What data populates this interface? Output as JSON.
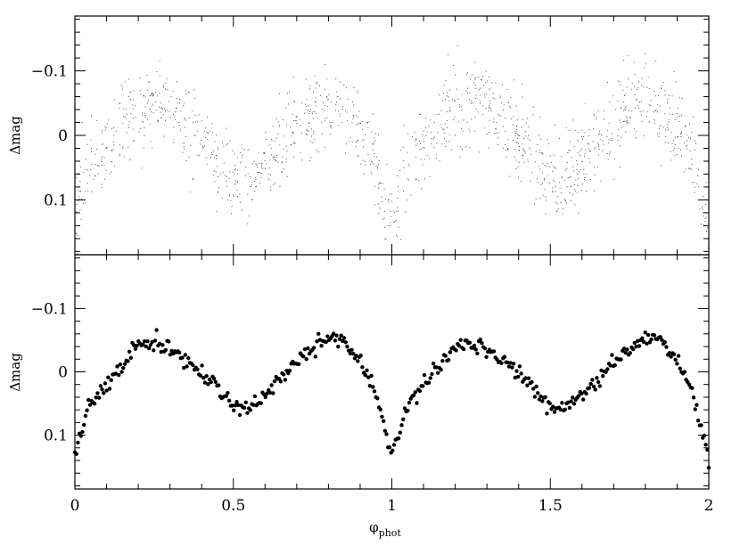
{
  "chart_data": [
    {
      "type": "scatter",
      "panel": "top",
      "ylabel": "Δmag",
      "xlim": [
        0,
        2
      ],
      "ylim": [
        -0.185,
        0.185
      ],
      "y_inverted": true,
      "x_ticks": [
        0,
        0.5,
        1,
        1.5,
        2
      ],
      "y_ticks": [
        -0.1,
        0,
        0.1
      ],
      "y_tick_labels": [
        "−0.1",
        "0",
        "0.1"
      ],
      "point_color": "#333333",
      "series": [
        {
          "style": "dense-dots",
          "x": [
            0.0,
            0.05,
            0.1,
            0.15,
            0.2,
            0.25,
            0.3,
            0.35,
            0.4,
            0.45,
            0.5,
            0.55,
            0.6,
            0.65,
            0.7,
            0.75,
            0.8,
            0.85,
            0.9,
            0.95,
            1.0
          ],
          "y": [
            0.13,
            0.045,
            0.02,
            -0.02,
            -0.045,
            -0.055,
            -0.045,
            -0.02,
            0.005,
            0.035,
            0.06,
            0.065,
            0.04,
            0.01,
            -0.02,
            -0.04,
            -0.055,
            -0.045,
            -0.01,
            0.04,
            0.16
          ]
        }
      ]
    },
    {
      "type": "scatter",
      "panel": "bottom",
      "ylabel": "Δmag",
      "xlabel": "φ",
      "xlabel_sub": "phot",
      "xlim": [
        0,
        2
      ],
      "ylim": [
        -0.185,
        0.185
      ],
      "y_inverted": true,
      "x_ticks": [
        0,
        0.5,
        1,
        1.5,
        2
      ],
      "x_tick_labels": [
        "0",
        "0.5",
        "1",
        "1.5",
        "2"
      ],
      "y_ticks": [
        -0.1,
        0,
        0.1
      ],
      "y_tick_labels": [
        "−0.1",
        "0",
        "0.1"
      ],
      "point_color": "#000000",
      "series": [
        {
          "style": "binned-dots",
          "x": [
            0.0,
            0.05,
            0.1,
            0.15,
            0.2,
            0.25,
            0.3,
            0.35,
            0.4,
            0.45,
            0.5,
            0.55,
            0.6,
            0.65,
            0.7,
            0.75,
            0.8,
            0.85,
            0.9,
            0.95,
            1.0
          ],
          "y": [
            0.13,
            0.05,
            0.02,
            -0.01,
            -0.04,
            -0.045,
            -0.035,
            -0.02,
            0.0,
            0.03,
            0.055,
            0.055,
            0.035,
            0.01,
            -0.015,
            -0.035,
            -0.055,
            -0.05,
            -0.015,
            0.035,
            0.135
          ]
        }
      ]
    }
  ]
}
